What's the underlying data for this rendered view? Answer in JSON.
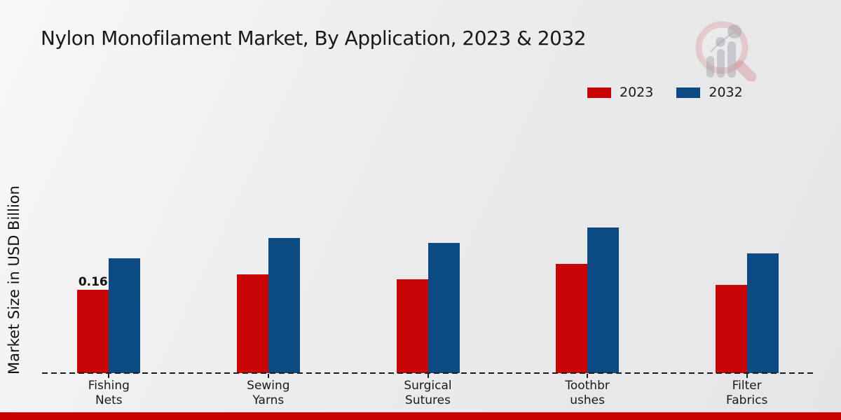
{
  "header": {
    "title": "Nylon Monofilament Market, By Application, 2023 & 2032"
  },
  "icons": {
    "watermark": "magnifier-bar-chart-logo"
  },
  "legend": {
    "items": [
      {
        "label": "2023",
        "color": "#c80404"
      },
      {
        "label": "2032",
        "color": "#0c4a84"
      }
    ]
  },
  "footer": {
    "bar_color": "#cb0000"
  },
  "chart_data": {
    "type": "bar",
    "title": "Nylon Monofilament Market, By Application, 2023 & 2032",
    "xlabel": "",
    "ylabel": "Market Size in USD Billion",
    "categories": [
      "Fishing Nets",
      "Sewing Yarns",
      "Surgical Sutures",
      "Toothbrushes",
      "Filter Fabrics"
    ],
    "category_label_lines": [
      [
        "Fishing",
        "Nets"
      ],
      [
        "Sewing",
        "Yarns"
      ],
      [
        "Surgical",
        "Sutures"
      ],
      [
        "Toothbr",
        "ushes"
      ],
      [
        "Filter",
        "Fabrics"
      ]
    ],
    "series": [
      {
        "name": "2023",
        "color": "#c80404",
        "values": [
          0.16,
          0.19,
          0.18,
          0.21,
          0.17
        ]
      },
      {
        "name": "2032",
        "color": "#0c4a84",
        "values": [
          0.22,
          0.26,
          0.25,
          0.28,
          0.23
        ]
      }
    ],
    "value_labels": [
      {
        "series_index": 0,
        "category_index": 0,
        "text": "0.16"
      }
    ],
    "ylim": [
      0,
      0.3
    ],
    "grid": false,
    "legend_position": "top-right",
    "baseline_style": "dashed"
  }
}
